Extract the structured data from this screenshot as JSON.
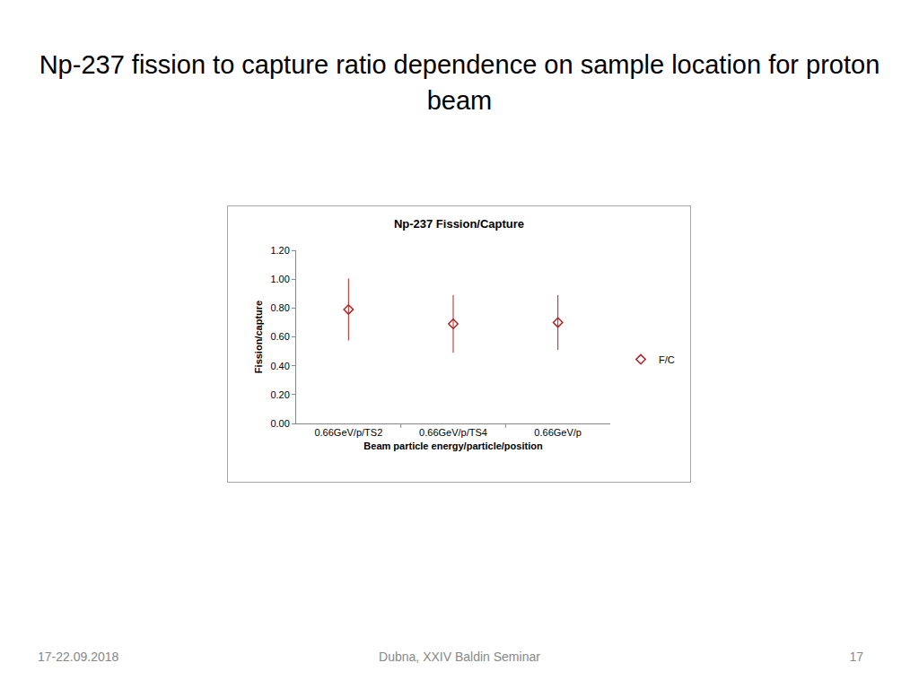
{
  "slide": {
    "title": "Np-237 fission to capture ratio dependence on sample location for proton beam",
    "footer": {
      "left": "17-22.09.2018",
      "center": "Dubna, XXIV Baldin Seminar",
      "right": "17"
    }
  },
  "chart_data": {
    "type": "scatter",
    "title": "Np-237 Fission/Capture",
    "x_label": "Beam particle energy/particle/position",
    "y_label": "Fission/capture",
    "categories": [
      "0.66GeV/p/TS2",
      "0.66GeV/p/TS4",
      "0.66GeV/p"
    ],
    "series": [
      {
        "name": "F/C",
        "color": "#b22222",
        "marker": "diamond-open",
        "values": [
          0.79,
          0.69,
          0.7
        ],
        "errors": [
          0.215,
          0.2,
          0.19
        ]
      }
    ],
    "ylim": [
      0,
      1.2
    ],
    "yticks": [
      {
        "value": 0,
        "label": "0.00"
      },
      {
        "value": 0.2,
        "label": "0.20"
      },
      {
        "value": 0.4,
        "label": "0.40"
      },
      {
        "value": 0.6,
        "label": "0.60"
      },
      {
        "value": 0.8,
        "label": "0.80"
      },
      {
        "value": 1.0,
        "label": "1.00"
      },
      {
        "value": 1.2,
        "label": "1.20"
      }
    ],
    "grid": false,
    "legend": "right"
  }
}
